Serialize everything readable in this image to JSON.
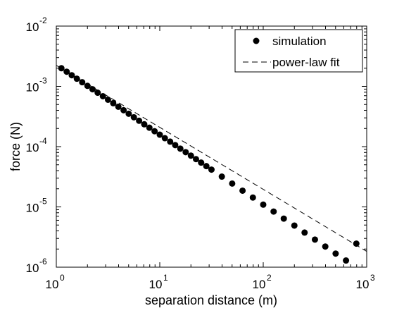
{
  "chart_data": {
    "type": "scatter",
    "xlabel": "separation distance (m)",
    "ylabel": "force (N)",
    "x_scale": "log",
    "y_scale": "log",
    "xlim": [
      1,
      1000
    ],
    "ylim": [
      1e-06,
      0.01
    ],
    "grid": false,
    "legend_position": "top-right",
    "x_ticks": [
      {
        "base": "10",
        "exp": "0",
        "value": 1
      },
      {
        "base": "10",
        "exp": "1",
        "value": 10
      },
      {
        "base": "10",
        "exp": "2",
        "value": 100
      },
      {
        "base": "10",
        "exp": "3",
        "value": 1000
      }
    ],
    "y_ticks": [
      {
        "base": "10",
        "exp": "-6",
        "value": 1e-06
      },
      {
        "base": "10",
        "exp": "-5",
        "value": 1e-05
      },
      {
        "base": "10",
        "exp": "-4",
        "value": 0.0001
      },
      {
        "base": "10",
        "exp": "-3",
        "value": 0.001
      },
      {
        "base": "10",
        "exp": "-2",
        "value": 0.01
      }
    ],
    "series": [
      {
        "name": "simulation",
        "style": "markers",
        "color": "#000000",
        "x": [
          1.12,
          1.26,
          1.41,
          1.58,
          1.78,
          2.0,
          2.24,
          2.51,
          2.82,
          3.16,
          3.55,
          3.98,
          4.47,
          5.01,
          5.62,
          6.31,
          7.08,
          7.94,
          8.91,
          10.0,
          11.2,
          12.6,
          14.1,
          15.8,
          17.8,
          20.0,
          22.4,
          25.1,
          28.2,
          31.6,
          39.8,
          50.1,
          63.1,
          79.4,
          100,
          126,
          158,
          200,
          251,
          316,
          398,
          501,
          631,
          794
        ],
        "y": [
          0.002,
          0.00175,
          0.00153,
          0.00134,
          0.00117,
          0.00102,
          0.000896,
          0.000784,
          0.000686,
          0.0006,
          0.000525,
          0.000459,
          0.000402,
          0.000351,
          0.000307,
          0.000269,
          0.000235,
          0.000206,
          0.00018,
          0.000158,
          0.000138,
          0.000121,
          0.000106,
          9.26e-05,
          8.1e-05,
          7.09e-05,
          6.2e-05,
          5.43e-05,
          4.75e-05,
          4.16e-05,
          3.18e-05,
          2.44e-05,
          1.86e-05,
          1.43e-05,
          1.09e-05,
          8.37e-06,
          6.4e-06,
          4.9e-06,
          3.75e-06,
          2.87e-06,
          2.2e-06,
          1.68e-06,
          1.29e-06,
          2.46e-06
        ]
      },
      {
        "name": "power-law fit",
        "style": "dashed",
        "color": "#000000",
        "x": [
          1.0,
          1000
        ],
        "y": [
          0.00223,
          1.83e-06
        ]
      }
    ]
  }
}
